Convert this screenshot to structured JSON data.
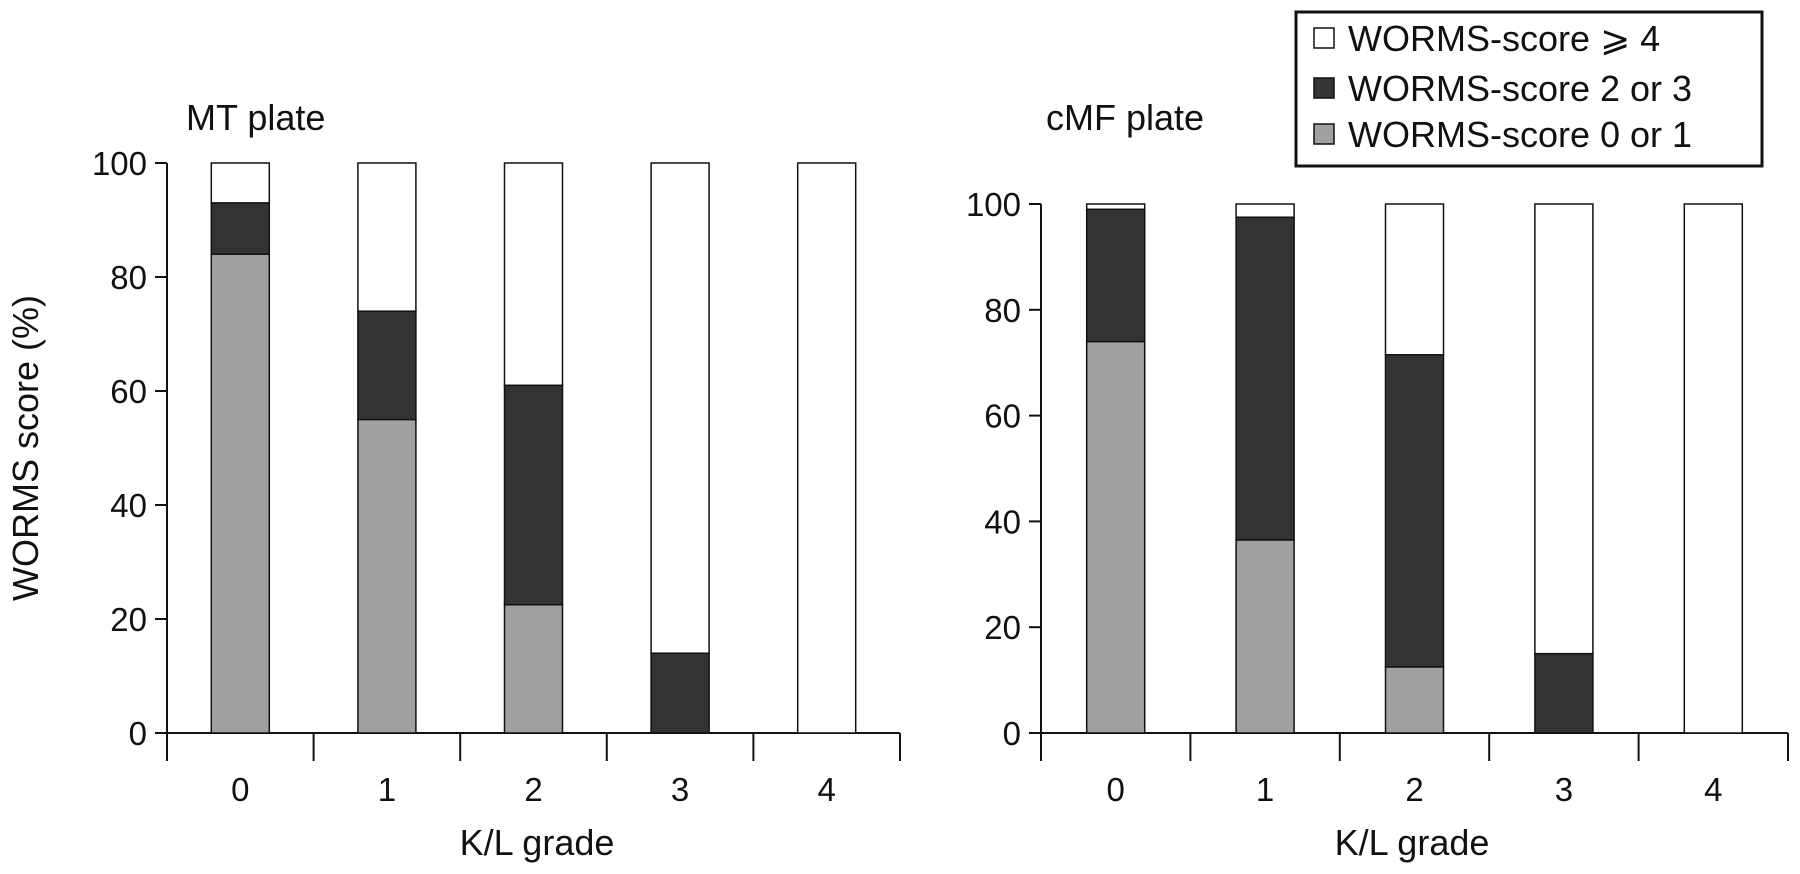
{
  "legend": {
    "entries": [
      {
        "label": "WORMS-score ⩾ 4",
        "color": "#ffffff"
      },
      {
        "label": "WORMS-score 2 or 3",
        "color": "#333333"
      },
      {
        "label": "WORMS-score 0 or 1",
        "color": "#a0a0a0"
      }
    ]
  },
  "chart_data": [
    {
      "type": "bar",
      "stacked": true,
      "title": "MT plate",
      "xlabel": "K/L grade",
      "ylabel": "WORMS score (%)",
      "categories": [
        "0",
        "1",
        "2",
        "3",
        "4"
      ],
      "ylim": [
        0,
        100
      ],
      "yticks": [
        "0",
        "20",
        "40",
        "60",
        "80",
        "100"
      ],
      "series": [
        {
          "name": "WORMS-score 0 or 1",
          "color": "#a0a0a0",
          "values": [
            84,
            55,
            22.5,
            0,
            0
          ]
        },
        {
          "name": "WORMS-score 2 or 3",
          "color": "#333333",
          "values": [
            9,
            19,
            38.5,
            14,
            0
          ]
        },
        {
          "name": "WORMS-score ⩾ 4",
          "color": "#ffffff",
          "values": [
            7,
            26,
            39,
            86,
            100
          ]
        }
      ]
    },
    {
      "type": "bar",
      "stacked": true,
      "title": "cMF plate",
      "xlabel": "K/L grade",
      "ylabel": "",
      "categories": [
        "0",
        "1",
        "2",
        "3",
        "4"
      ],
      "ylim": [
        0,
        100
      ],
      "yticks": [
        "0",
        "20",
        "40",
        "60",
        "80",
        "100"
      ],
      "series": [
        {
          "name": "WORMS-score 0 or 1",
          "color": "#a0a0a0",
          "values": [
            74,
            36.5,
            12.5,
            0,
            0
          ]
        },
        {
          "name": "WORMS-score 2 or 3",
          "color": "#333333",
          "values": [
            25,
            61,
            59,
            15,
            0
          ]
        },
        {
          "name": "WORMS-score ⩾ 4",
          "color": "#ffffff",
          "values": [
            1,
            2.5,
            28.5,
            85,
            100
          ]
        }
      ]
    }
  ]
}
